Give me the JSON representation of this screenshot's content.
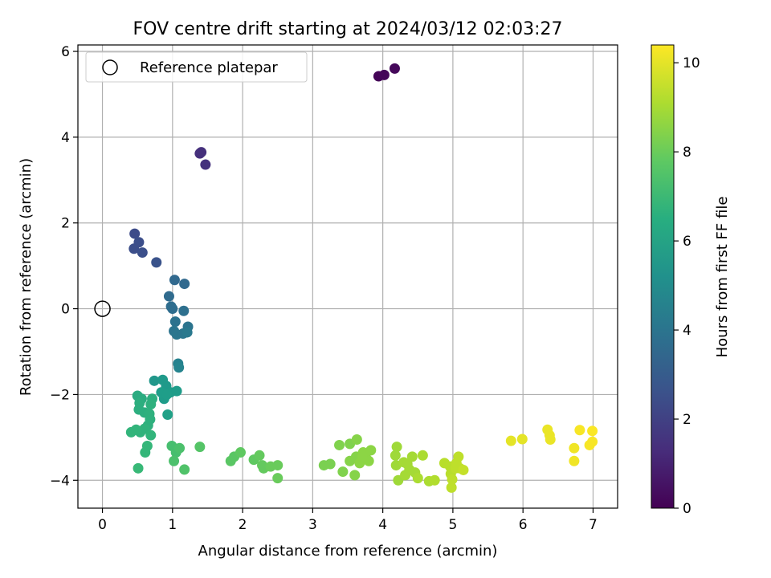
{
  "chart_data": {
    "type": "scatter",
    "title": "FOV centre drift starting at 2024/03/12 02:03:27",
    "xlabel": "Angular distance from reference (arcmin)",
    "ylabel": "Rotation from reference (arcmin)",
    "colorbar_label": "Hours from first FF file",
    "xlim": [
      -0.35,
      7.35
    ],
    "ylim": [
      -4.65,
      6.15
    ],
    "x_ticks": [
      0,
      1,
      2,
      3,
      4,
      5,
      6,
      7
    ],
    "y_ticks": [
      -4,
      -2,
      0,
      2,
      4,
      6
    ],
    "colorbar_range": [
      0,
      10.4
    ],
    "colorbar_ticks": [
      0,
      2,
      4,
      6,
      8,
      10
    ],
    "colormap": "viridis",
    "grid": true,
    "legend_position": "top-left",
    "reference": {
      "name": "Reference platepar",
      "x": 0,
      "y": 0
    },
    "series": [
      {
        "name": "",
        "points": [
          [
            3.94,
            5.42,
            0.1
          ],
          [
            4.02,
            5.45,
            0.15
          ],
          [
            4.17,
            5.6,
            0.2
          ],
          [
            1.39,
            3.62,
            1.4
          ],
          [
            1.41,
            3.65,
            1.45
          ],
          [
            1.47,
            3.36,
            1.5
          ],
          [
            0.46,
            1.75,
            2.4
          ],
          [
            0.52,
            1.55,
            2.5
          ],
          [
            0.45,
            1.4,
            2.5
          ],
          [
            0.57,
            1.31,
            2.55
          ],
          [
            0.77,
            1.08,
            2.7
          ],
          [
            1.03,
            0.67,
            3.5
          ],
          [
            1.17,
            0.58,
            3.5
          ],
          [
            0.95,
            0.29,
            3.6
          ],
          [
            0.98,
            0.05,
            3.7
          ],
          [
            1.0,
            0.0,
            3.7
          ],
          [
            1.16,
            -0.05,
            3.8
          ],
          [
            1.04,
            -0.3,
            3.9
          ],
          [
            1.22,
            -0.42,
            4.0
          ],
          [
            1.02,
            -0.52,
            4.0
          ],
          [
            1.06,
            -0.6,
            4.1
          ],
          [
            1.15,
            -0.58,
            4.1
          ],
          [
            1.21,
            -0.55,
            4.2
          ],
          [
            1.08,
            -1.28,
            4.6
          ],
          [
            1.09,
            -1.37,
            4.7
          ],
          [
            0.74,
            -1.68,
            5.5
          ],
          [
            0.86,
            -1.66,
            5.6
          ],
          [
            0.91,
            -1.8,
            5.6
          ],
          [
            0.97,
            -1.95,
            5.7
          ],
          [
            1.06,
            -1.92,
            5.7
          ],
          [
            0.88,
            -2.1,
            5.7
          ],
          [
            0.84,
            -1.95,
            5.8
          ],
          [
            0.92,
            -2.0,
            5.8
          ],
          [
            0.93,
            -2.47,
            5.9
          ],
          [
            0.5,
            -2.03,
            6.4
          ],
          [
            0.56,
            -2.1,
            6.4
          ],
          [
            0.53,
            -2.2,
            6.5
          ],
          [
            0.52,
            -2.35,
            6.5
          ],
          [
            0.6,
            -2.42,
            6.5
          ],
          [
            0.71,
            -2.1,
            6.5
          ],
          [
            0.69,
            -2.23,
            6.6
          ],
          [
            0.67,
            -2.45,
            6.6
          ],
          [
            0.68,
            -2.58,
            6.6
          ],
          [
            0.65,
            -2.72,
            6.6
          ],
          [
            0.6,
            -2.8,
            6.7
          ],
          [
            0.54,
            -2.88,
            6.7
          ],
          [
            0.48,
            -2.82,
            6.8
          ],
          [
            0.41,
            -2.88,
            6.8
          ],
          [
            0.69,
            -2.95,
            6.8
          ],
          [
            0.64,
            -3.2,
            6.9
          ],
          [
            0.61,
            -3.35,
            6.9
          ],
          [
            0.51,
            -3.72,
            7.0
          ],
          [
            0.99,
            -3.2,
            7.3
          ],
          [
            1.05,
            -3.35,
            7.3
          ],
          [
            1.02,
            -3.55,
            7.4
          ],
          [
            1.1,
            -3.25,
            7.4
          ],
          [
            1.17,
            -3.75,
            7.5
          ],
          [
            1.39,
            -3.22,
            7.6
          ],
          [
            1.83,
            -3.55,
            7.7
          ],
          [
            1.88,
            -3.45,
            7.7
          ],
          [
            1.97,
            -3.35,
            7.8
          ],
          [
            2.16,
            -3.52,
            7.8
          ],
          [
            2.24,
            -3.42,
            7.9
          ],
          [
            2.28,
            -3.65,
            7.9
          ],
          [
            2.3,
            -3.72,
            7.9
          ],
          [
            2.4,
            -3.68,
            8.0
          ],
          [
            2.5,
            -3.65,
            8.0
          ],
          [
            2.5,
            -3.95,
            8.0
          ],
          [
            3.16,
            -3.65,
            8.3
          ],
          [
            3.25,
            -3.62,
            8.3
          ],
          [
            3.38,
            -3.18,
            8.4
          ],
          [
            3.43,
            -3.8,
            8.4
          ],
          [
            3.53,
            -3.15,
            8.4
          ],
          [
            3.53,
            -3.55,
            8.5
          ],
          [
            3.6,
            -3.88,
            8.5
          ],
          [
            3.62,
            -3.45,
            8.5
          ],
          [
            3.63,
            -3.05,
            8.5
          ],
          [
            3.67,
            -3.6,
            8.6
          ],
          [
            3.72,
            -3.35,
            8.6
          ],
          [
            3.76,
            -3.48,
            8.6
          ],
          [
            3.8,
            -3.55,
            8.6
          ],
          [
            3.83,
            -3.3,
            8.6
          ],
          [
            3.71,
            -3.45,
            8.6
          ],
          [
            4.2,
            -3.22,
            8.9
          ],
          [
            4.18,
            -3.42,
            8.9
          ],
          [
            4.19,
            -3.65,
            8.9
          ],
          [
            4.22,
            -4.0,
            8.9
          ],
          [
            4.3,
            -3.58,
            9.0
          ],
          [
            4.32,
            -3.88,
            9.0
          ],
          [
            4.38,
            -3.75,
            9.0
          ],
          [
            4.42,
            -3.45,
            9.0
          ],
          [
            4.46,
            -3.82,
            9.0
          ],
          [
            4.5,
            -3.95,
            9.1
          ],
          [
            4.35,
            -3.62,
            9.0
          ],
          [
            4.57,
            -3.42,
            9.1
          ],
          [
            4.66,
            -4.02,
            9.1
          ],
          [
            4.74,
            -4.0,
            9.2
          ],
          [
            4.88,
            -3.6,
            9.3
          ],
          [
            4.96,
            -3.68,
            9.3
          ],
          [
            4.97,
            -3.85,
            9.3
          ],
          [
            4.98,
            -4.17,
            9.4
          ],
          [
            5.04,
            -3.72,
            9.4
          ],
          [
            5.05,
            -3.6,
            9.4
          ],
          [
            5.08,
            -3.45,
            9.4
          ],
          [
            5.1,
            -3.72,
            9.4
          ],
          [
            5.15,
            -3.76,
            9.5
          ],
          [
            4.99,
            -3.98,
            9.4
          ],
          [
            5.83,
            -3.08,
            10.0
          ],
          [
            5.99,
            -3.04,
            10.0
          ],
          [
            6.35,
            -2.82,
            10.1
          ],
          [
            6.38,
            -2.95,
            10.1
          ],
          [
            6.39,
            -3.05,
            10.1
          ],
          [
            6.73,
            -3.25,
            10.2
          ],
          [
            6.73,
            -3.55,
            10.2
          ],
          [
            6.81,
            -2.83,
            10.3
          ],
          [
            6.95,
            -3.18,
            10.3
          ],
          [
            6.99,
            -3.1,
            10.3
          ],
          [
            6.99,
            -2.85,
            10.35
          ]
        ]
      }
    ]
  }
}
